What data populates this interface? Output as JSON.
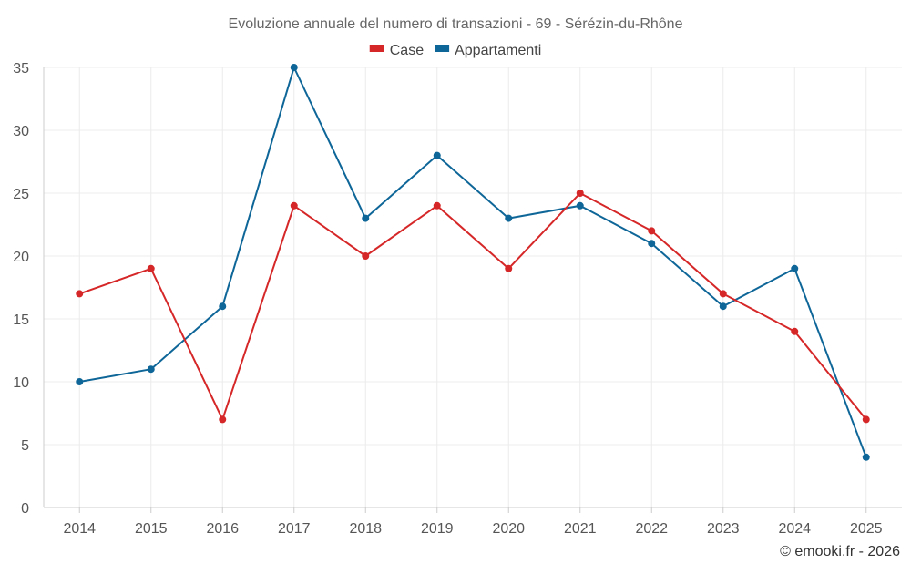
{
  "chart_data": {
    "type": "line",
    "title": "Evoluzione annuale del numero di transazioni - 69 - Sérézin-du-Rhône",
    "xlabel": "",
    "ylabel": "",
    "categories": [
      "2014",
      "2015",
      "2016",
      "2017",
      "2018",
      "2019",
      "2020",
      "2021",
      "2022",
      "2023",
      "2024",
      "2025"
    ],
    "ylim": [
      0,
      35
    ],
    "yticks": [
      0,
      5,
      10,
      15,
      20,
      25,
      30,
      35
    ],
    "grid": true,
    "legend_position": "top-center",
    "series": [
      {
        "name": "Case",
        "color": "#d62728",
        "values": [
          17,
          19,
          7,
          24,
          20,
          24,
          19,
          25,
          22,
          17,
          14,
          7
        ]
      },
      {
        "name": "Appartamenti",
        "color": "#0e6698",
        "values": [
          10,
          11,
          16,
          35,
          23,
          28,
          23,
          24,
          21,
          16,
          19,
          4
        ]
      }
    ]
  },
  "credit": "© emooki.fr - 2026"
}
